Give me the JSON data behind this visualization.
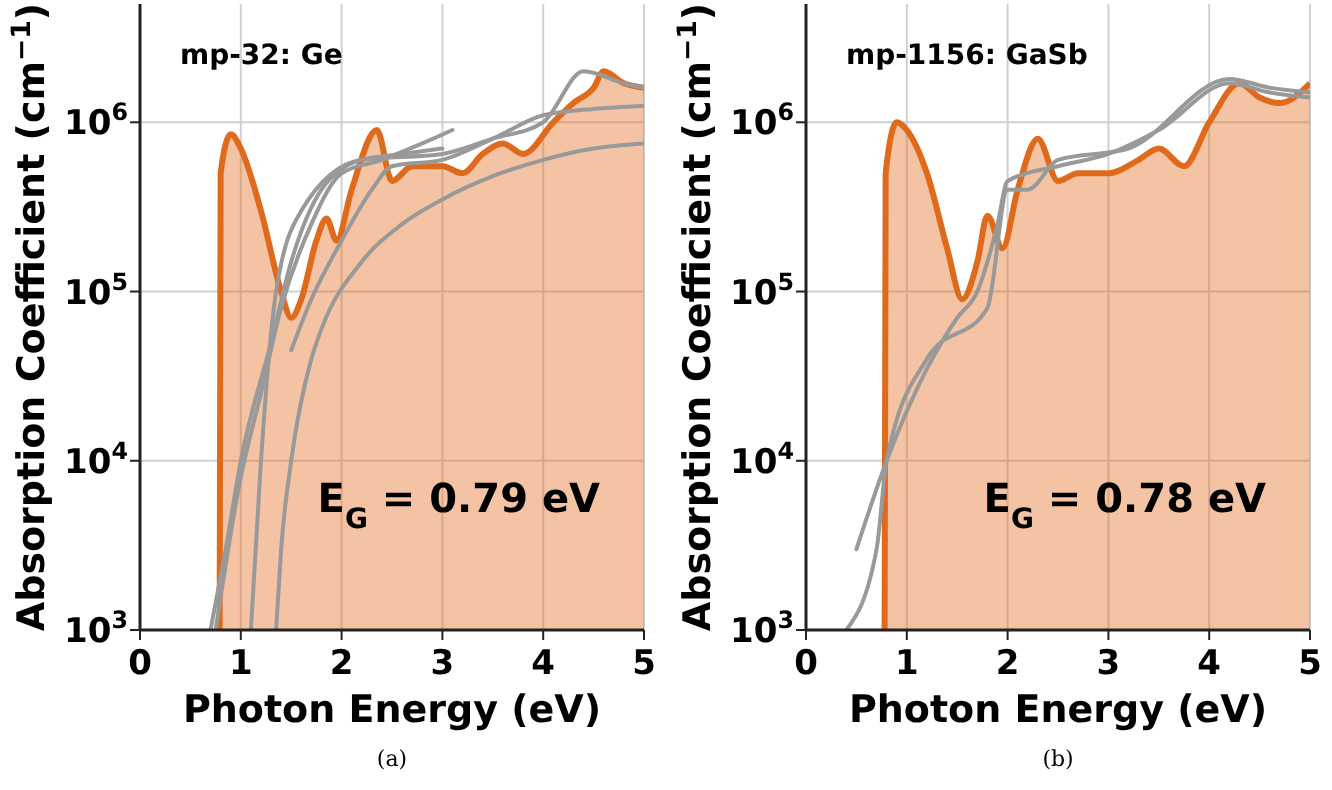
{
  "chart_data": [
    {
      "type": "area",
      "title": "mp-32: Ge",
      "xlabel": "Photon Energy (eV)",
      "ylabel": "Absorption Coefficient (cm$^{−1}$)",
      "log": "y",
      "grid": true,
      "xlim": [
        0,
        5
      ],
      "xticks": [
        0,
        1,
        2,
        3,
        4,
        5
      ],
      "ylim": [
        1000,
        5000000
      ],
      "yticks": [
        {
          "value": 1000,
          "label": "10$^{3}$"
        },
        {
          "value": 10000,
          "label": "10$^{4}$"
        },
        {
          "value": 100000,
          "label": "10$^{5}$"
        },
        {
          "value": 1000000,
          "label": "10$^{6}$"
        }
      ],
      "annotations": [
        "E$_{G}$ = 0.79 eV",
        "(a)"
      ],
      "series": [
        {
          "type": "area",
          "color": "#e06a1b",
          "x": [
            0.79,
            0.8,
            0.9,
            1.0,
            1.2,
            1.4,
            1.5,
            1.6,
            1.75,
            1.85,
            1.95,
            2.1,
            2.35,
            2.5,
            2.7,
            3.0,
            3.2,
            3.4,
            3.6,
            3.8,
            4.1,
            4.3,
            4.5,
            4.6,
            4.8,
            5.0
          ],
          "values": [
            1000,
            500000,
            850000,
            700000,
            300000,
            100000,
            70000,
            90000,
            200000,
            270000,
            200000,
            400000,
            900000,
            450000,
            550000,
            550000,
            500000,
            650000,
            750000,
            650000,
            1000000,
            1300000,
            1600000,
            2000000,
            1700000,
            1600000
          ]
        },
        {
          "type": "line",
          "color": "#999999",
          "x": [
            0.7,
            0.85,
            1.0,
            1.3,
            1.5,
            1.8,
            2.2,
            2.6,
            3.0
          ],
          "values": [
            1000,
            3000,
            10000,
            50000,
            150000,
            400000,
            600000,
            650000,
            700000
          ]
        },
        {
          "type": "line",
          "color": "#999999",
          "x": [
            0.75,
            1.0,
            1.2,
            1.4,
            1.7,
            2.0,
            2.4,
            2.8,
            3.1
          ],
          "values": [
            1000,
            8000,
            25000,
            80000,
            250000,
            500000,
            600000,
            750000,
            900000
          ]
        },
        {
          "type": "line",
          "color": "#999999",
          "x": [
            1.1,
            1.2,
            1.35,
            1.6,
            2.2,
            3.0,
            3.5,
            4.0,
            4.4,
            4.8,
            5.0
          ],
          "values": [
            1000,
            10000,
            100000,
            300000,
            600000,
            650000,
            800000,
            1000000,
            2000000,
            1700000,
            1600000
          ]
        },
        {
          "type": "line",
          "color": "#999999",
          "x": [
            1.35,
            1.4,
            1.5,
            1.7,
            1.8,
            2.2,
            2.6,
            3.0,
            3.5,
            4.0,
            4.5,
            5.0
          ],
          "values": [
            1000,
            3000,
            10000,
            40000,
            60000,
            150000,
            250000,
            350000,
            480000,
            600000,
            700000,
            750000
          ]
        },
        {
          "type": "line",
          "color": "#999999",
          "x": [
            1.5,
            1.7,
            2.0,
            2.3,
            2.5,
            3.0,
            3.5,
            4.0,
            4.5,
            5.0
          ],
          "values": [
            45000,
            90000,
            200000,
            400000,
            550000,
            600000,
            800000,
            1100000,
            1200000,
            1250000
          ]
        }
      ]
    },
    {
      "type": "area",
      "title": "mp-1156: GaSb",
      "xlabel": "Photon Energy (eV)",
      "ylabel": "Absorption Coefficient (cm$^{−1}$)",
      "log": "y",
      "grid": true,
      "xlim": [
        0,
        5
      ],
      "xticks": [
        0,
        1,
        2,
        3,
        4,
        5
      ],
      "ylim": [
        1000,
        5000000
      ],
      "yticks": [
        {
          "value": 1000,
          "label": "10$^{3}$"
        },
        {
          "value": 10000,
          "label": "10$^{4}$"
        },
        {
          "value": 100000,
          "label": "10$^{5}$"
        },
        {
          "value": 1000000,
          "label": "10$^{6}$"
        }
      ],
      "annotations": [
        "E$_{G}$ = 0.78 eV",
        "(b)"
      ],
      "series": [
        {
          "type": "area",
          "color": "#e06a1b",
          "x": [
            0.78,
            0.79,
            0.9,
            1.0,
            1.2,
            1.4,
            1.55,
            1.7,
            1.8,
            1.95,
            2.1,
            2.3,
            2.5,
            2.7,
            3.0,
            3.3,
            3.5,
            3.75,
            4.0,
            4.3,
            4.5,
            4.7,
            5.0
          ],
          "values": [
            1000,
            500000,
            1000000,
            900000,
            500000,
            180000,
            90000,
            150000,
            280000,
            180000,
            400000,
            800000,
            450000,
            500000,
            500000,
            600000,
            700000,
            550000,
            1000000,
            1700000,
            1400000,
            1300000,
            1700000
          ]
        },
        {
          "type": "line",
          "color": "#999999",
          "x": [
            0.5,
            0.8,
            1.2,
            1.5,
            1.7,
            1.9,
            2.0,
            2.5,
            3.0,
            3.5,
            4.2,
            4.6,
            5.0
          ],
          "values": [
            3000,
            10000,
            35000,
            70000,
            100000,
            250000,
            450000,
            550000,
            650000,
            900000,
            1700000,
            1500000,
            1400000
          ]
        },
        {
          "type": "line",
          "color": "#999999",
          "x": [
            0.4,
            0.7,
            0.8,
            1.2,
            1.8,
            2.0,
            2.2,
            2.5,
            3.2,
            4.2,
            4.6,
            5.0
          ],
          "values": [
            1000,
            3000,
            10000,
            40000,
            80000,
            400000,
            400000,
            600000,
            700000,
            1800000,
            1600000,
            1500000
          ]
        }
      ]
    }
  ]
}
